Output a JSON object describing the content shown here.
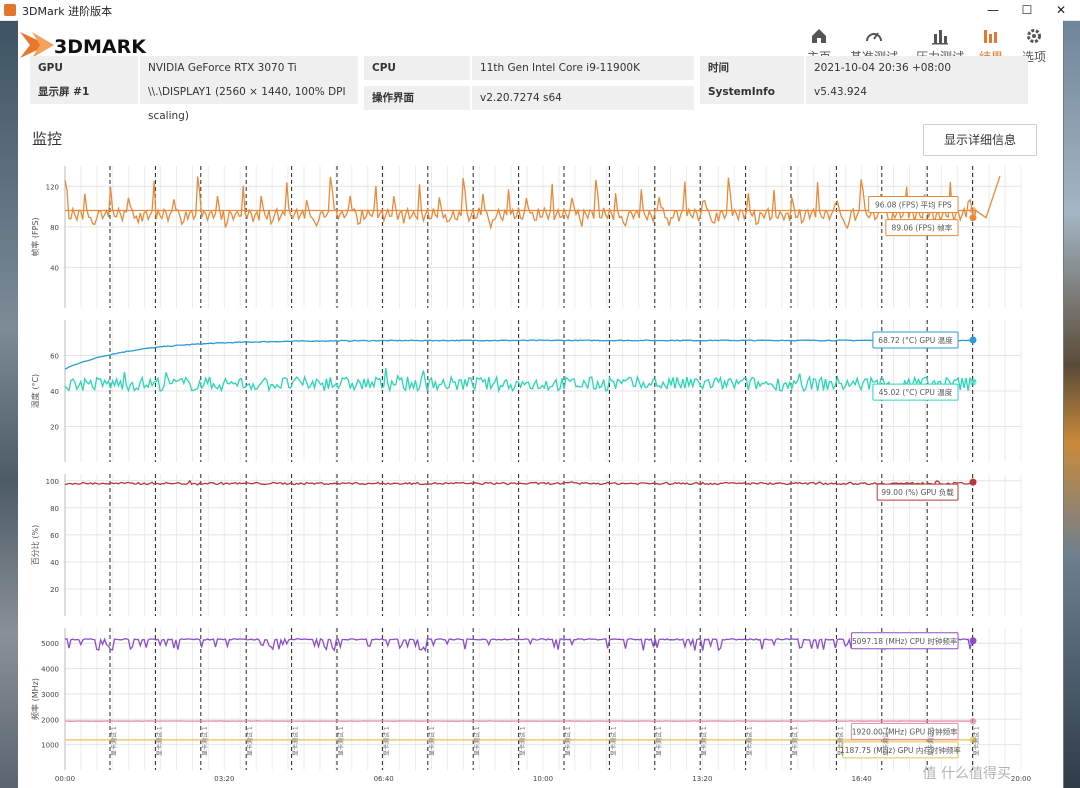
{
  "window": {
    "title": "3DMark 进阶版本",
    "minimize": "—",
    "maximize": "☐",
    "close": "✕"
  },
  "brand": {
    "logo_text": "3DMARK",
    "accent": "#e8762c"
  },
  "nav": {
    "items": [
      {
        "label": "主页",
        "icon": "home-icon",
        "active": false
      },
      {
        "label": "基准测试",
        "icon": "gauge-icon",
        "active": false
      },
      {
        "label": "压力测试",
        "icon": "stress-bars-icon",
        "active": false
      },
      {
        "label": "结果",
        "icon": "results-bars-icon",
        "active": true
      },
      {
        "label": "选项",
        "icon": "gear-icon",
        "active": false
      }
    ],
    "active_color": "#e8762c"
  },
  "info_rows": [
    [
      {
        "label": "GPU",
        "value": "NVIDIA GeForce RTX 3070 Ti"
      },
      {
        "label": "CPU",
        "value": "11th Gen Intel Core i9-11900K"
      },
      {
        "label": "时间",
        "value": "2021-10-04 20:36 +08:00"
      }
    ],
    [
      {
        "label": "显示屏 #1",
        "value": "\\\\.\\DISPLAY1 (2560 × 1440, 100% DPI scaling)"
      },
      {
        "label": "操作界面",
        "value": "v2.20.7274 s64"
      },
      {
        "label": "SystemInfo",
        "value": "v5.43.924"
      }
    ]
  ],
  "monitor": {
    "title": "监控",
    "detail_button": "显示详细信息"
  },
  "chart_data": {
    "type": "line",
    "x_ticks": [
      "00:00",
      "03:20",
      "06:40",
      "10:00",
      "13:20",
      "16:40",
      "20:00"
    ],
    "marker_label": "显卡测试 1",
    "panels": [
      {
        "ylabel": "帧率 (FPS)",
        "ylim": [
          0,
          140
        ],
        "yticks": [
          40,
          80,
          120
        ],
        "series": [
          {
            "name": "帧率",
            "color": "#e8893a",
            "kind": "fps",
            "base": 90,
            "last": 89.06,
            "tag": "89.06 (FPS) 帧率"
          },
          {
            "name": "平均 FPS",
            "color": "#e8893a",
            "kind": "flat",
            "base": 96.08,
            "last": 96.08,
            "tag": "96.08 (FPS) 平均 FPS",
            "muted": true
          }
        ]
      },
      {
        "ylabel": "温度 (°C)",
        "ylim": [
          0,
          80
        ],
        "yticks": [
          20,
          40,
          60
        ],
        "series": [
          {
            "name": "GPU 温度",
            "color": "#2c9ad6",
            "kind": "gputemp",
            "base": 68.72,
            "last": 68.72,
            "tag": "68.72 (°C) GPU 温度"
          },
          {
            "name": "CPU 温度",
            "color": "#28d6b4",
            "kind": "noisy",
            "base": 44,
            "amp": 4,
            "last": 45.02,
            "tag": "45.02 (°C) CPU 温度",
            "muted": true
          }
        ]
      },
      {
        "ylabel": "百分比 (%)",
        "ylim": [
          0,
          105
        ],
        "yticks": [
          20,
          40,
          60,
          80,
          100
        ],
        "series": [
          {
            "name": "GPU 负载",
            "color": "#b33a3a",
            "kind": "noisy",
            "base": 98,
            "amp": 0.8,
            "last": 99.0,
            "tag": "99.00 (%) GPU 负载"
          }
        ]
      },
      {
        "ylabel": "频率 (MHz)",
        "ylim": [
          0,
          5600
        ],
        "yticks": [
          1000,
          2000,
          3000,
          4000,
          5000
        ],
        "series": [
          {
            "name": "CPU 时钟频率",
            "color": "#8a4fc8",
            "kind": "cpuclk",
            "base": 5150,
            "last": 5097.18,
            "tag": "5097.18 (MHz) CPU 时钟频率"
          },
          {
            "name": "GPU 时钟频率",
            "color": "#e48aa6",
            "kind": "noisy",
            "base": 1930,
            "amp": 6,
            "last": 1920.0,
            "tag": "1920.00 (MHz) GPU 时钟频率",
            "muted": true
          },
          {
            "name": "GPU 内存时钟频率",
            "color": "#e8c04a",
            "kind": "flat",
            "base": 1187.75,
            "last": 1187.75,
            "tag": "1187.75 (MHz) GPU 内存时钟频率",
            "muted": true
          }
        ]
      }
    ]
  },
  "watermark": "值 什么值得买"
}
